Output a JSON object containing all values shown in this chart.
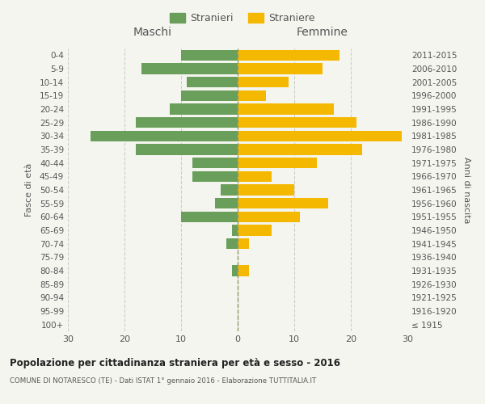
{
  "age_groups": [
    "100+",
    "95-99",
    "90-94",
    "85-89",
    "80-84",
    "75-79",
    "70-74",
    "65-69",
    "60-64",
    "55-59",
    "50-54",
    "45-49",
    "40-44",
    "35-39",
    "30-34",
    "25-29",
    "20-24",
    "15-19",
    "10-14",
    "5-9",
    "0-4"
  ],
  "birth_years": [
    "≤ 1915",
    "1916-1920",
    "1921-1925",
    "1926-1930",
    "1931-1935",
    "1936-1940",
    "1941-1945",
    "1946-1950",
    "1951-1955",
    "1956-1960",
    "1961-1965",
    "1966-1970",
    "1971-1975",
    "1976-1980",
    "1981-1985",
    "1986-1990",
    "1991-1995",
    "1996-2000",
    "2001-2005",
    "2006-2010",
    "2011-2015"
  ],
  "maschi": [
    0,
    0,
    0,
    0,
    1,
    0,
    2,
    1,
    10,
    4,
    3,
    8,
    8,
    18,
    26,
    18,
    12,
    10,
    9,
    17,
    10
  ],
  "femmine": [
    0,
    0,
    0,
    0,
    2,
    0,
    2,
    6,
    11,
    16,
    10,
    6,
    14,
    22,
    29,
    21,
    17,
    5,
    9,
    15,
    18
  ],
  "color_maschi": "#6a9e5b",
  "color_femmine": "#f5b800",
  "title": "Popolazione per cittadinanza straniera per età e sesso - 2016",
  "subtitle": "COMUNE DI NOTARESCO (TE) - Dati ISTAT 1° gennaio 2016 - Elaborazione TUTTITALIA.IT",
  "ylabel_left": "Fasce di età",
  "ylabel_right": "Anni di nascita",
  "legend_maschi": "Stranieri",
  "legend_femmine": "Straniere",
  "header_left": "Maschi",
  "header_right": "Femmine",
  "xlim": 30,
  "background_color": "#f5f5f0",
  "bar_height": 0.8
}
